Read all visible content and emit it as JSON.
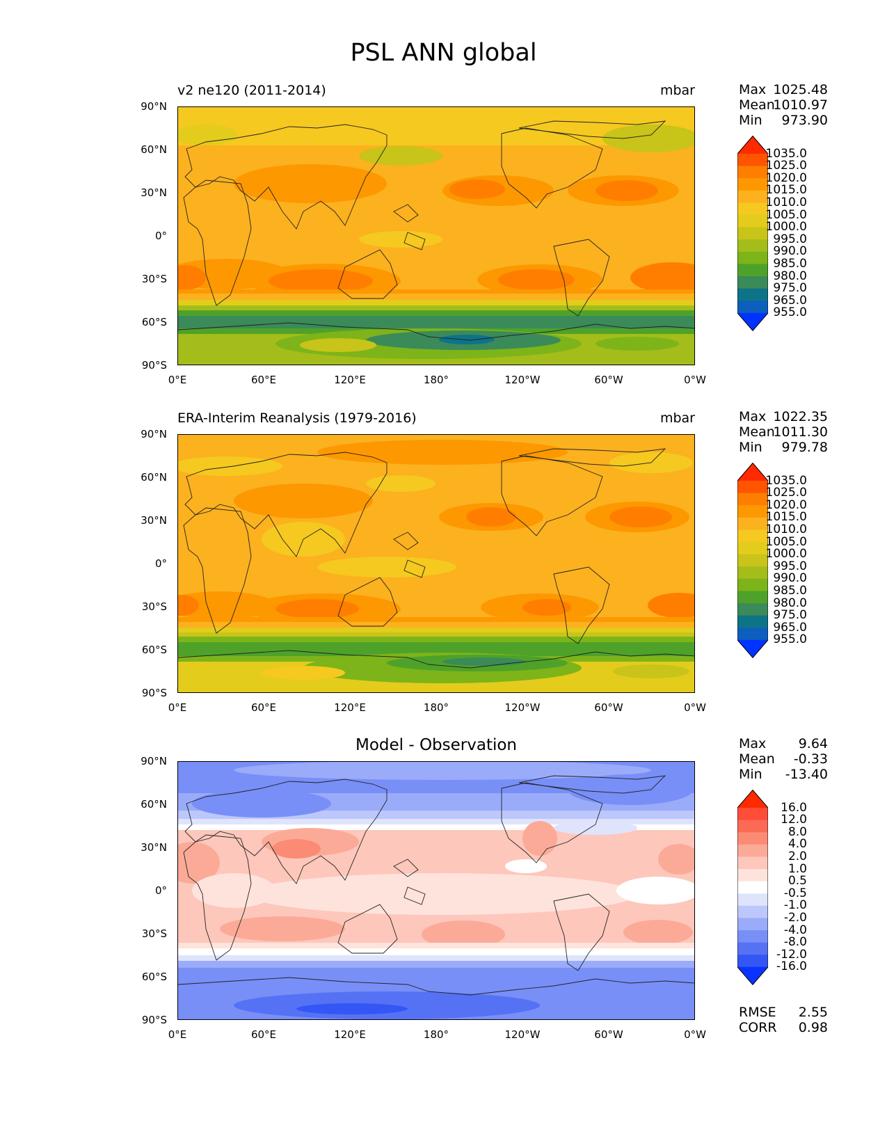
{
  "figure_title": "PSL ANN global",
  "x_ticks": [
    "0°E",
    "60°E",
    "120°E",
    "180°",
    "120°W",
    "60°W",
    "0°W"
  ],
  "y_ticks": [
    "90°N",
    "60°N",
    "30°N",
    "0°",
    "30°S",
    "60°S",
    "90°S"
  ],
  "panels": [
    {
      "title_left": "v2 ne120 (2011-2014)",
      "title_right": "mbar",
      "stats": [
        {
          "key": "Max",
          "value": "1025.48"
        },
        {
          "key": "Mean",
          "value": "1010.97"
        },
        {
          "key": "Min",
          "value": "973.90"
        }
      ],
      "colorbar_labels": [
        "1035.0",
        "1025.0",
        "1020.0",
        "1015.0",
        "1010.0",
        "1005.0",
        "1000.0",
        "995.0",
        "990.0",
        "985.0",
        "980.0",
        "975.0",
        "965.0",
        "955.0"
      ]
    },
    {
      "title_left": "ERA-Interim Reanalysis (1979-2016)",
      "title_right": "mbar",
      "stats": [
        {
          "key": "Max",
          "value": "1022.35"
        },
        {
          "key": "Mean",
          "value": "1011.30"
        },
        {
          "key": "Min",
          "value": "979.78"
        }
      ],
      "colorbar_labels": [
        "1035.0",
        "1025.0",
        "1020.0",
        "1015.0",
        "1010.0",
        "1005.0",
        "1000.0",
        "995.0",
        "990.0",
        "985.0",
        "980.0",
        "975.0",
        "965.0",
        "955.0"
      ]
    },
    {
      "title_center": "Model - Observation",
      "stats": [
        {
          "key": "Max",
          "value": "9.64"
        },
        {
          "key": "Mean",
          "value": "-0.33"
        },
        {
          "key": "Min",
          "value": "-13.40"
        }
      ],
      "colorbar_labels": [
        "16.0",
        "12.0",
        "8.0",
        "4.0",
        "2.0",
        "1.0",
        "0.5",
        "-0.5",
        "-1.0",
        "-2.0",
        "-4.0",
        "-8.0",
        "-12.0",
        "-16.0"
      ],
      "extra_stats": [
        {
          "key": "RMSE",
          "value": "2.55"
        },
        {
          "key": "CORR",
          "value": "0.98"
        }
      ]
    }
  ],
  "colors": {
    "psl": [
      "#ff2a00",
      "#ff5500",
      "#ff7e00",
      "#fd9800",
      "#fcb11f",
      "#f5c91f",
      "#e3cc1c",
      "#c8c419",
      "#a4bd1b",
      "#7db419",
      "#4ea229",
      "#3b8a5a",
      "#0d7487",
      "#0d5fbe",
      "#0033ff"
    ],
    "diff": [
      "#ff2a00",
      "#ff4d3a",
      "#fb6a55",
      "#fb8b74",
      "#fcaa98",
      "#fdc7bb",
      "#fee3dc",
      "#ffffff",
      "#dfe4fc",
      "#bcc7fb",
      "#9aabf9",
      "#788ff7",
      "#5572f5",
      "#3356f5",
      "#0a33ff"
    ]
  }
}
